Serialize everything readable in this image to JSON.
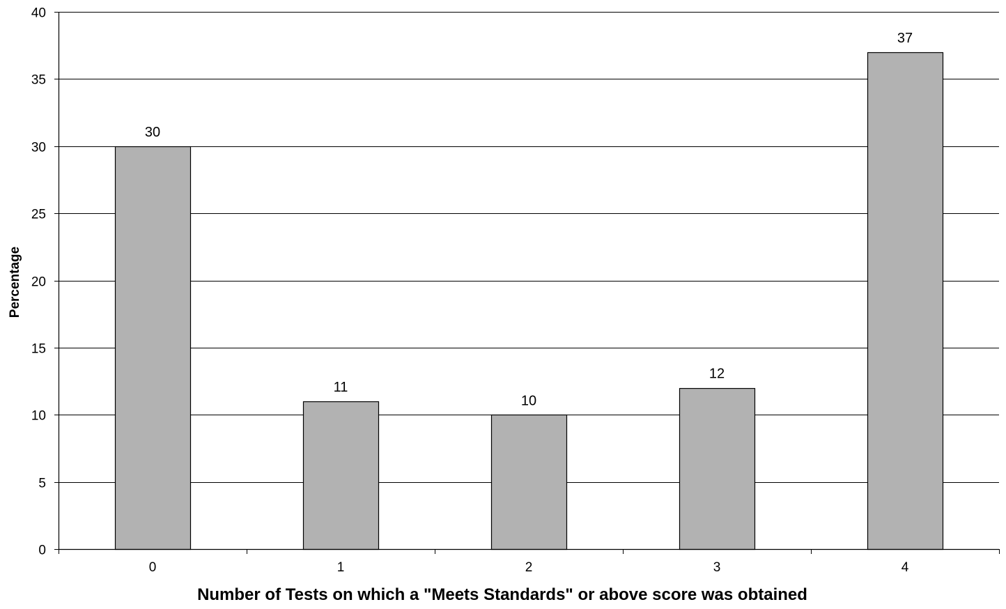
{
  "chart_data": {
    "type": "bar",
    "title": "",
    "xlabel": "Number of Tests on which a \"Meets Standards\" or above score was obtained",
    "ylabel": "Percentage",
    "categories": [
      "0",
      "1",
      "2",
      "3",
      "4"
    ],
    "values": [
      30,
      11,
      10,
      12,
      37
    ],
    "data_labels": [
      "30",
      "11",
      "10",
      "12",
      "37"
    ],
    "ylim": [
      0,
      40
    ],
    "yticks": [
      0,
      5,
      10,
      15,
      20,
      25,
      30,
      35,
      40
    ],
    "ytick_labels": [
      "0",
      "5",
      "10",
      "15",
      "20",
      "25",
      "30",
      "35",
      "40"
    ],
    "grid": "horizontal",
    "legend": "none",
    "colors": {
      "bar_fill": "#b2b2b2",
      "bar_stroke": "#000000",
      "gridline": "#000000",
      "axis": "#000000",
      "background": "#ffffff"
    }
  }
}
